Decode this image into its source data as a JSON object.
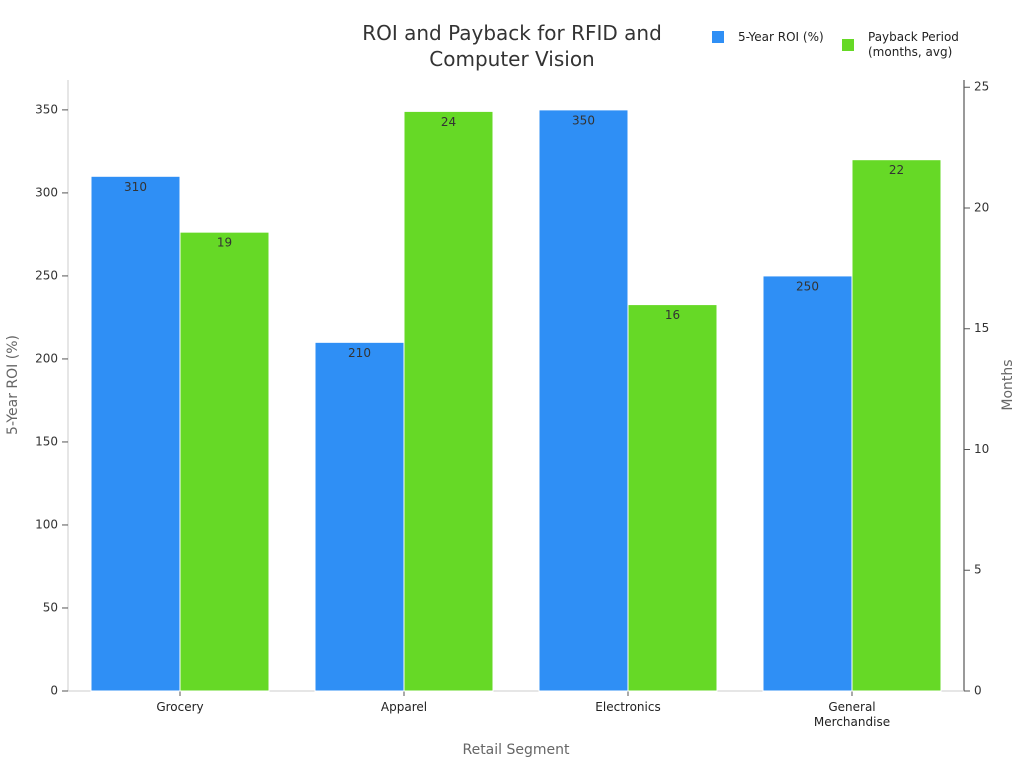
{
  "chart_data": {
    "type": "bar",
    "title": "ROI and Payback for RFID and Computer Vision",
    "x_label": "Retail Segment",
    "y_label": "5-Year ROI (%)",
    "y2_label": "Months",
    "categories": [
      "Grocery",
      "Apparel",
      "Electronics",
      "General Merchandise"
    ],
    "series": [
      {
        "name": "5-Year ROI (%)",
        "color": "#2f8ff5",
        "values": [
          310,
          210,
          350,
          250
        ]
      },
      {
        "name": "Payback Period (months, avg)",
        "color": "#66d926",
        "axis": "y2",
        "values": [
          19,
          24,
          16,
          22
        ]
      }
    ],
    "ylim": [
      0,
      368
    ],
    "yticks": [
      0,
      50,
      100,
      150,
      200,
      250,
      300,
      350
    ],
    "y2lim": [
      0,
      25.3
    ],
    "y2ticks": [
      0,
      5,
      10,
      15,
      20,
      25
    ],
    "legend": "top-right"
  }
}
